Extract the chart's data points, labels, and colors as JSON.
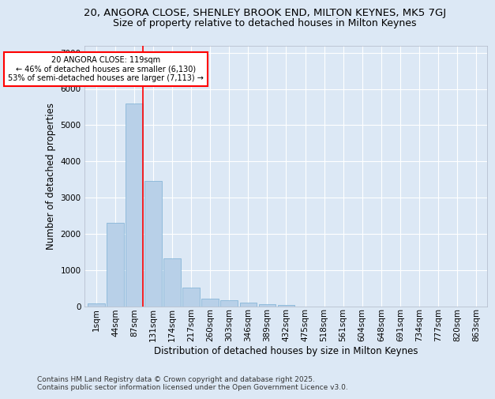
{
  "title_line1": "20, ANGORA CLOSE, SHENLEY BROOK END, MILTON KEYNES, MK5 7GJ",
  "title_line2": "Size of property relative to detached houses in Milton Keynes",
  "xlabel": "Distribution of detached houses by size in Milton Keynes",
  "ylabel": "Number of detached properties",
  "categories": [
    "1sqm",
    "44sqm",
    "87sqm",
    "131sqm",
    "174sqm",
    "217sqm",
    "260sqm",
    "303sqm",
    "346sqm",
    "389sqm",
    "432sqm",
    "475sqm",
    "518sqm",
    "561sqm",
    "604sqm",
    "648sqm",
    "691sqm",
    "734sqm",
    "777sqm",
    "820sqm",
    "863sqm"
  ],
  "values": [
    80,
    2300,
    5600,
    3450,
    1320,
    520,
    200,
    165,
    95,
    55,
    30,
    0,
    0,
    0,
    0,
    0,
    0,
    0,
    0,
    0,
    0
  ],
  "bar_color": "#b8d0e8",
  "bar_edge_color": "#7aafd4",
  "vline_x_idx": 2,
  "vline_color": "red",
  "annotation_text": "20 ANGORA CLOSE: 119sqm\n← 46% of detached houses are smaller (6,130)\n53% of semi-detached houses are larger (7,113) →",
  "annotation_box_color": "white",
  "annotation_box_edge": "red",
  "ylim": [
    0,
    7200
  ],
  "yticks": [
    0,
    1000,
    2000,
    3000,
    4000,
    5000,
    6000,
    7000
  ],
  "background_color": "#dce8f5",
  "grid_color": "white",
  "footer": "Contains HM Land Registry data © Crown copyright and database right 2025.\nContains public sector information licensed under the Open Government Licence v3.0.",
  "title_fontsize": 9.5,
  "subtitle_fontsize": 9,
  "tick_fontsize": 7.5,
  "label_fontsize": 8.5,
  "footer_fontsize": 6.5
}
